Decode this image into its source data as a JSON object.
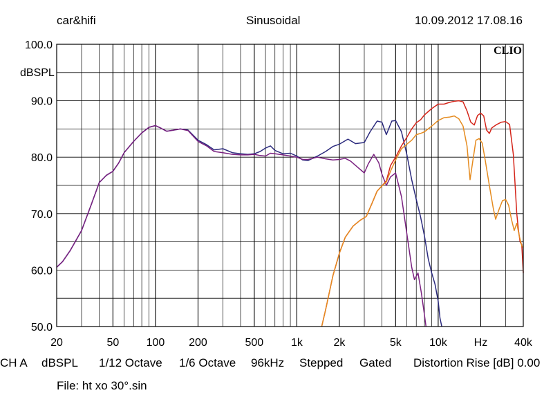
{
  "header": {
    "left": "car&hifi",
    "center": "Sinusoidal",
    "right": "10.09.2012 17.08.16"
  },
  "badge": "CLIO",
  "footer": {
    "channel": "CH A",
    "unit": "dBSPL",
    "smoothing": "1/12 Octave",
    "resolution": "1/6 Octave",
    "rate": "96kHz",
    "mode": "Stepped",
    "gating": "Gated",
    "distortion": "Distortion Rise [dB] 0.00",
    "file": "File: ht xo 30°.sin"
  },
  "chart_data": {
    "type": "line",
    "xscale": "log",
    "xlim": [
      20,
      40000
    ],
    "ylim": [
      50,
      100
    ],
    "grid": true,
    "ylabel": "dBSPL",
    "x_ticks": [
      {
        "v": 20,
        "label": "20"
      },
      {
        "v": 50,
        "label": "50"
      },
      {
        "v": 100,
        "label": "100"
      },
      {
        "v": 200,
        "label": "200"
      },
      {
        "v": 500,
        "label": "500"
      },
      {
        "v": 1000,
        "label": "1k"
      },
      {
        "v": 2000,
        "label": "2k"
      },
      {
        "v": 5000,
        "label": "5k"
      },
      {
        "v": 10000,
        "label": "10k"
      },
      {
        "v": 20000,
        "label": "Hz"
      },
      {
        "v": 40000,
        "label": "40k"
      }
    ],
    "y_ticks": [
      {
        "v": 100,
        "label": "100.0"
      },
      {
        "v": 90,
        "label": "90.0"
      },
      {
        "v": 80,
        "label": "80.0"
      },
      {
        "v": 70,
        "label": "70.0"
      },
      {
        "v": 60,
        "label": "60.0"
      },
      {
        "v": 50,
        "label": "50.0"
      }
    ],
    "series": [
      {
        "color": "#2b2a7d",
        "points": [
          [
            20,
            60.5
          ],
          [
            22,
            61.5
          ],
          [
            25,
            63.5
          ],
          [
            30,
            67
          ],
          [
            35,
            71.5
          ],
          [
            40,
            75.5
          ],
          [
            45,
            76.8
          ],
          [
            50,
            77.5
          ],
          [
            55,
            79
          ],
          [
            60,
            80.8
          ],
          [
            70,
            82.8
          ],
          [
            80,
            84.3
          ],
          [
            90,
            85.3
          ],
          [
            100,
            85.6
          ],
          [
            110,
            85.1
          ],
          [
            120,
            84.6
          ],
          [
            135,
            84.8
          ],
          [
            150,
            85.0
          ],
          [
            170,
            84.8
          ],
          [
            200,
            83.0
          ],
          [
            230,
            82.2
          ],
          [
            260,
            81.3
          ],
          [
            300,
            81.5
          ],
          [
            350,
            80.8
          ],
          [
            400,
            80.6
          ],
          [
            450,
            80.5
          ],
          [
            500,
            80.6
          ],
          [
            550,
            81.0
          ],
          [
            600,
            81.6
          ],
          [
            650,
            82.0
          ],
          [
            700,
            81.2
          ],
          [
            800,
            80.6
          ],
          [
            900,
            80.7
          ],
          [
            1000,
            80.2
          ],
          [
            1100,
            79.5
          ],
          [
            1200,
            79.4
          ],
          [
            1400,
            80.2
          ],
          [
            1600,
            81.0
          ],
          [
            1800,
            81.9
          ],
          [
            2000,
            82.3
          ],
          [
            2300,
            83.2
          ],
          [
            2600,
            82.4
          ],
          [
            3000,
            82.6
          ],
          [
            3300,
            84.5
          ],
          [
            3700,
            86.4
          ],
          [
            4000,
            86.2
          ],
          [
            4300,
            84.0
          ],
          [
            4700,
            86.4
          ],
          [
            5000,
            86.5
          ],
          [
            5500,
            84.5
          ],
          [
            6000,
            80.5
          ],
          [
            6500,
            76.0
          ],
          [
            7000,
            72.5
          ],
          [
            7500,
            69.5
          ],
          [
            8000,
            66.0
          ],
          [
            8500,
            62.0
          ],
          [
            9000,
            59.5
          ],
          [
            9500,
            57.5
          ],
          [
            10000,
            54.5
          ],
          [
            10300,
            51.5
          ],
          [
            10600,
            50.0
          ]
        ]
      },
      {
        "color": "#7a2180",
        "points": [
          [
            20,
            60.5
          ],
          [
            22,
            61.5
          ],
          [
            25,
            63.5
          ],
          [
            30,
            67
          ],
          [
            35,
            71.5
          ],
          [
            40,
            75.5
          ],
          [
            45,
            76.8
          ],
          [
            50,
            77.5
          ],
          [
            55,
            79
          ],
          [
            60,
            80.8
          ],
          [
            70,
            82.8
          ],
          [
            80,
            84.3
          ],
          [
            90,
            85.3
          ],
          [
            100,
            85.6
          ],
          [
            110,
            85.1
          ],
          [
            120,
            84.6
          ],
          [
            135,
            84.8
          ],
          [
            150,
            85.0
          ],
          [
            170,
            84.7
          ],
          [
            200,
            82.8
          ],
          [
            230,
            82.0
          ],
          [
            260,
            81.0
          ],
          [
            300,
            80.8
          ],
          [
            350,
            80.5
          ],
          [
            400,
            80.4
          ],
          [
            450,
            80.4
          ],
          [
            500,
            80.5
          ],
          [
            550,
            80.3
          ],
          [
            600,
            80.2
          ],
          [
            650,
            80.7
          ],
          [
            700,
            80.6
          ],
          [
            800,
            80.4
          ],
          [
            900,
            80.2
          ],
          [
            1000,
            80.0
          ],
          [
            1100,
            79.6
          ],
          [
            1200,
            79.6
          ],
          [
            1400,
            80.0
          ],
          [
            1600,
            79.7
          ],
          [
            1800,
            79.5
          ],
          [
            2000,
            79.6
          ],
          [
            2200,
            79.8
          ],
          [
            2400,
            79.3
          ],
          [
            2700,
            78.2
          ],
          [
            3000,
            77.2
          ],
          [
            3200,
            78.8
          ],
          [
            3500,
            80.5
          ],
          [
            3800,
            79.0
          ],
          [
            4000,
            77.0
          ],
          [
            4300,
            75.0
          ],
          [
            4600,
            76.5
          ],
          [
            5000,
            77.2
          ],
          [
            5500,
            73.0
          ],
          [
            6000,
            66.5
          ],
          [
            6500,
            60.5
          ],
          [
            6800,
            58.3
          ],
          [
            7200,
            59.5
          ],
          [
            7600,
            56.0
          ],
          [
            8000,
            52.0
          ],
          [
            8200,
            50.0
          ]
        ]
      },
      {
        "color": "#d4251a",
        "points": [
          [
            1500,
            50.0
          ],
          [
            1600,
            53.0
          ],
          [
            1800,
            59.0
          ],
          [
            2000,
            63.0
          ],
          [
            2200,
            65.8
          ],
          [
            2500,
            67.8
          ],
          [
            2800,
            68.8
          ],
          [
            3100,
            69.5
          ],
          [
            3400,
            71.8
          ],
          [
            3700,
            74.0
          ],
          [
            4000,
            74.9
          ],
          [
            4300,
            75.8
          ],
          [
            4600,
            78.5
          ],
          [
            5000,
            80.0
          ],
          [
            5500,
            82.0
          ],
          [
            6000,
            83.5
          ],
          [
            6500,
            85.0
          ],
          [
            7000,
            86.1
          ],
          [
            7500,
            86.6
          ],
          [
            8000,
            87.5
          ],
          [
            9000,
            88.6
          ],
          [
            10000,
            89.4
          ],
          [
            11000,
            89.4
          ],
          [
            12000,
            89.7
          ],
          [
            13000,
            89.9
          ],
          [
            14000,
            90.0
          ],
          [
            15000,
            89.8
          ],
          [
            16000,
            88.2
          ],
          [
            17000,
            86.2
          ],
          [
            18000,
            85.7
          ],
          [
            19000,
            87.4
          ],
          [
            20000,
            87.8
          ],
          [
            21000,
            87.3
          ],
          [
            22000,
            84.8
          ],
          [
            23000,
            84.2
          ],
          [
            24000,
            85.2
          ],
          [
            26000,
            85.8
          ],
          [
            28000,
            86.2
          ],
          [
            30000,
            86.3
          ],
          [
            32000,
            85.8
          ],
          [
            34000,
            80.5
          ],
          [
            36000,
            70.0
          ],
          [
            37000,
            67.0
          ],
          [
            38000,
            65.0
          ],
          [
            39000,
            64.5
          ],
          [
            40000,
            59.5
          ]
        ]
      },
      {
        "color": "#e58b1f",
        "points": [
          [
            1500,
            50.0
          ],
          [
            1600,
            53.0
          ],
          [
            1800,
            59.0
          ],
          [
            2000,
            63.0
          ],
          [
            2200,
            65.8
          ],
          [
            2500,
            67.8
          ],
          [
            2800,
            68.8
          ],
          [
            3100,
            69.5
          ],
          [
            3400,
            71.8
          ],
          [
            3700,
            74.0
          ],
          [
            4000,
            74.9
          ],
          [
            4300,
            75.6
          ],
          [
            4600,
            77.5
          ],
          [
            5000,
            79.5
          ],
          [
            5500,
            81.5
          ],
          [
            6000,
            82.3
          ],
          [
            6500,
            83.0
          ],
          [
            7000,
            84.0
          ],
          [
            7500,
            84.2
          ],
          [
            8000,
            84.5
          ],
          [
            9000,
            85.5
          ],
          [
            10000,
            86.5
          ],
          [
            11000,
            87.0
          ],
          [
            12000,
            87.1
          ],
          [
            13000,
            87.3
          ],
          [
            14000,
            86.8
          ],
          [
            15000,
            85.5
          ],
          [
            16000,
            82.0
          ],
          [
            16800,
            76.0
          ],
          [
            17500,
            79.0
          ],
          [
            18500,
            83.0
          ],
          [
            19500,
            83.3
          ],
          [
            20500,
            82.5
          ],
          [
            21500,
            79.5
          ],
          [
            23000,
            75.0
          ],
          [
            24500,
            71.0
          ],
          [
            25500,
            69.0
          ],
          [
            27000,
            70.8
          ],
          [
            28500,
            72.3
          ],
          [
            30000,
            72.5
          ],
          [
            31500,
            71.5
          ],
          [
            33000,
            69.0
          ],
          [
            34500,
            67.0
          ],
          [
            36000,
            68.3
          ],
          [
            37500,
            66.0
          ],
          [
            39000,
            64.3
          ],
          [
            40000,
            64.0
          ]
        ]
      }
    ]
  }
}
